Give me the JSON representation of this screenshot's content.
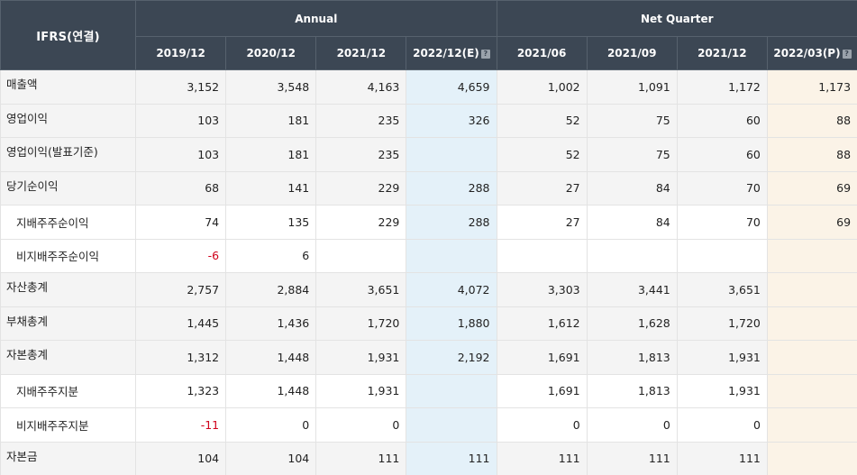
{
  "header": {
    "corner_label": "IFRS(연결)",
    "groups": {
      "annual": "Annual",
      "quarter": "Net Quarter"
    },
    "annual_periods": [
      "2019/12",
      "2020/12",
      "2021/12",
      "2022/12(E)"
    ],
    "quarter_periods": [
      "2021/06",
      "2021/09",
      "2021/12",
      "2022/03(P)"
    ],
    "help_icon_glyph": "?"
  },
  "rows": [
    {
      "label": "매출액",
      "values": [
        "3,152",
        "3,548",
        "4,163",
        "4,659",
        "1,002",
        "1,091",
        "1,172",
        "1,173"
      ]
    },
    {
      "label": "영업이익",
      "values": [
        "103",
        "181",
        "235",
        "326",
        "52",
        "75",
        "60",
        "88"
      ]
    },
    {
      "label": "영업이익(발표기준)",
      "values": [
        "103",
        "181",
        "235",
        "",
        "52",
        "75",
        "60",
        "88"
      ]
    },
    {
      "label": "당기순이익",
      "values": [
        "68",
        "141",
        "229",
        "288",
        "27",
        "84",
        "70",
        "69"
      ]
    },
    {
      "label": "지배주주순이익",
      "values": [
        "74",
        "135",
        "229",
        "288",
        "27",
        "84",
        "70",
        "69"
      ]
    },
    {
      "label": "비지배주주순이익",
      "values": [
        "-6",
        "6",
        "",
        "",
        "",
        "",
        "",
        ""
      ]
    },
    {
      "label": "자산총계",
      "values": [
        "2,757",
        "2,884",
        "3,651",
        "4,072",
        "3,303",
        "3,441",
        "3,651",
        ""
      ]
    },
    {
      "label": "부채총계",
      "values": [
        "1,445",
        "1,436",
        "1,720",
        "1,880",
        "1,612",
        "1,628",
        "1,720",
        ""
      ]
    },
    {
      "label": "자본총계",
      "values": [
        "1,312",
        "1,448",
        "1,931",
        "2,192",
        "1,691",
        "1,813",
        "1,931",
        ""
      ]
    },
    {
      "label": "지배주주지분",
      "values": [
        "1,323",
        "1,448",
        "1,931",
        "",
        "1,691",
        "1,813",
        "1,931",
        ""
      ]
    },
    {
      "label": "비지배주주지분",
      "values": [
        "-11",
        "0",
        "0",
        "",
        "0",
        "0",
        "0",
        ""
      ]
    },
    {
      "label": "자본금",
      "values": [
        "104",
        "104",
        "111",
        "111",
        "111",
        "111",
        "111",
        ""
      ]
    }
  ],
  "colors": {
    "header_bg": "#3c4754",
    "estimate_col_bg": "#e4f1f9",
    "preliminary_col_bg": "#fbf3e7",
    "negative_text": "#d0021b"
  }
}
